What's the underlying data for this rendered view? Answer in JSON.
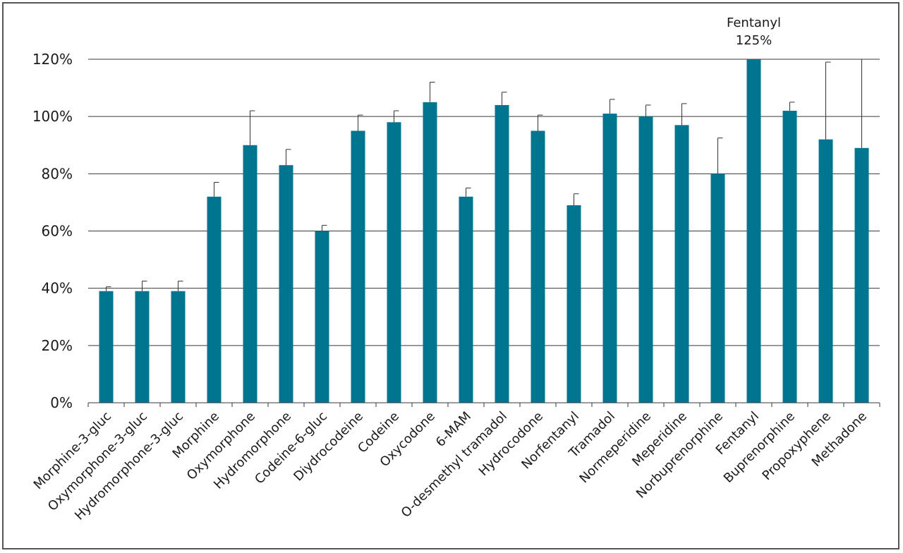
{
  "chart_data": {
    "type": "bar",
    "title": "",
    "xlabel": "",
    "ylabel": "",
    "ylim": [
      0,
      120
    ],
    "y_tick_values": [
      0,
      20,
      40,
      60,
      80,
      100,
      120
    ],
    "y_tick_labels": [
      "0%",
      "20%",
      "40%",
      "60%",
      "80%",
      "100%",
      "120%"
    ],
    "grid": true,
    "legend": "none",
    "bar_color": "#00758f",
    "categories": [
      "Morphine-3-gluc",
      "Oxymorphone-3-gluc",
      "Hydromorphone-3-gluc",
      "Morphine",
      "Oxymorphone",
      "Hydromorphone",
      "Codeine-6-gluc",
      "Diydrocodeine",
      "Codeine",
      "Oxycodone",
      "6-MAM",
      "O-desmethyl tramadol",
      "Hydrocodone",
      "Norfentanyl",
      "Tramadol",
      "Normeperidine",
      "Meperidine",
      "Norbuprenorphine",
      "Fentanyl",
      "Buprenorphine",
      "Propoxyphene",
      "Methadone"
    ],
    "values": [
      39,
      39,
      39,
      72,
      90,
      83,
      60,
      95,
      98,
      105,
      72,
      104,
      95,
      69,
      101,
      100,
      97,
      80,
      125,
      102,
      92,
      89
    ],
    "error_plus": [
      1.5,
      3.5,
      3.5,
      5,
      12,
      5.5,
      2,
      5.5,
      4,
      7,
      3,
      4.5,
      5.5,
      4,
      5,
      4,
      7.5,
      12.5,
      0,
      3,
      27,
      35
    ],
    "annotation": {
      "category": "Fentanyl",
      "line1": "Fentanyl",
      "line2": "125%"
    }
  }
}
